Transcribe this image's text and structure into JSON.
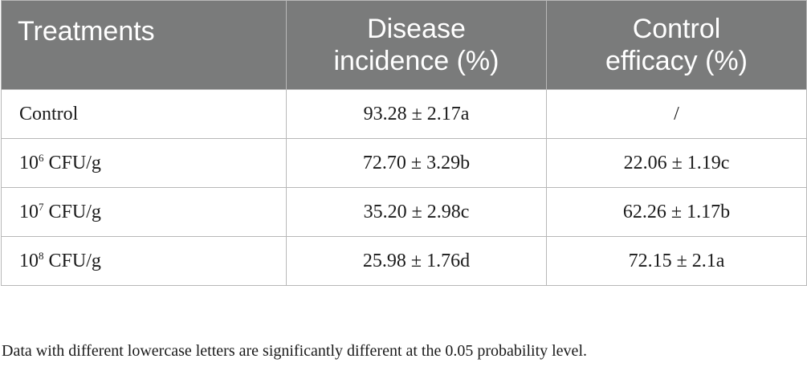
{
  "table": {
    "headers": [
      {
        "lines": [
          "Treatments"
        ]
      },
      {
        "lines": [
          "Disease",
          "incidence (%)"
        ]
      },
      {
        "lines": [
          "Control",
          "efficacy (%)"
        ]
      }
    ],
    "rows": [
      {
        "treatment": {
          "base": "Control",
          "exp": "",
          "unit": ""
        },
        "incidence": "93.28 ± 2.17a",
        "efficacy": "/"
      },
      {
        "treatment": {
          "base": "10",
          "exp": "6",
          "unit": " CFU/g"
        },
        "incidence": "72.70 ± 3.29b",
        "efficacy": "22.06 ± 1.19c"
      },
      {
        "treatment": {
          "base": "10",
          "exp": "7",
          "unit": " CFU/g"
        },
        "incidence": "35.20 ± 2.98c",
        "efficacy": "62.26 ± 1.17b"
      },
      {
        "treatment": {
          "base": "10",
          "exp": "8",
          "unit": " CFU/g"
        },
        "incidence": "25.98 ± 1.76d",
        "efficacy": "72.15 ± 2.1a"
      }
    ]
  },
  "note": "Data with different lowercase letters are significantly different at the 0.05 probability level.",
  "colors": {
    "header_bg": "#7a7b7b",
    "header_text": "#ffffff",
    "border": "#b8b8b8",
    "body_text": "#1a1a1a"
  }
}
